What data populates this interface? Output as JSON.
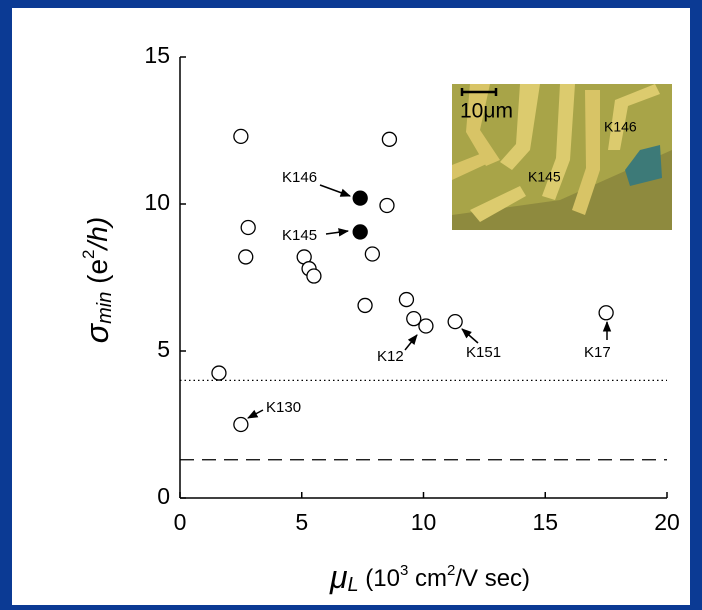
{
  "chart_data": {
    "type": "scatter",
    "ylabel": {
      "symbol": "σ",
      "sub": "min",
      "open": " (e",
      "sup": "2",
      "close": "/h)"
    },
    "xlabel": {
      "symbol": "μ",
      "sub": "L",
      "open": " (10",
      "sup1": "3",
      "mid": " cm",
      "sup2": "2",
      "close": "/V sec)"
    },
    "xlim": [
      0,
      20
    ],
    "xticks": [
      0,
      5,
      10,
      15,
      20
    ],
    "ylim": [
      0,
      15
    ],
    "yticks": [
      0,
      5,
      10,
      15
    ],
    "series": [
      {
        "color": "#000000",
        "filled": false,
        "x": [
          2.5,
          8.6,
          2.8,
          2.7,
          5.1,
          5.3,
          5.5,
          8.5,
          7.9,
          7.6,
          9.3,
          9.6,
          10.1,
          11.3,
          17.5,
          1.6,
          2.5
        ],
        "values": [
          12.3,
          12.2,
          9.2,
          8.2,
          8.2,
          7.8,
          7.55,
          9.95,
          8.3,
          6.55,
          6.75,
          6.1,
          5.85,
          6.0,
          6.3,
          4.25,
          2.5
        ]
      },
      {
        "color": "#000000",
        "filled": true,
        "x": [
          7.4,
          7.4
        ],
        "values": [
          10.2,
          9.05
        ]
      }
    ],
    "reference_lines": [
      {
        "value": 4,
        "style": "dotted"
      },
      {
        "value": 1.3,
        "style": "dashed"
      }
    ],
    "annotations": [
      "K146",
      "K145",
      "K12",
      "K151",
      "K17",
      "K130"
    ],
    "inset": {
      "scale": "10μm",
      "labels": [
        "K146",
        "K145"
      ]
    }
  }
}
